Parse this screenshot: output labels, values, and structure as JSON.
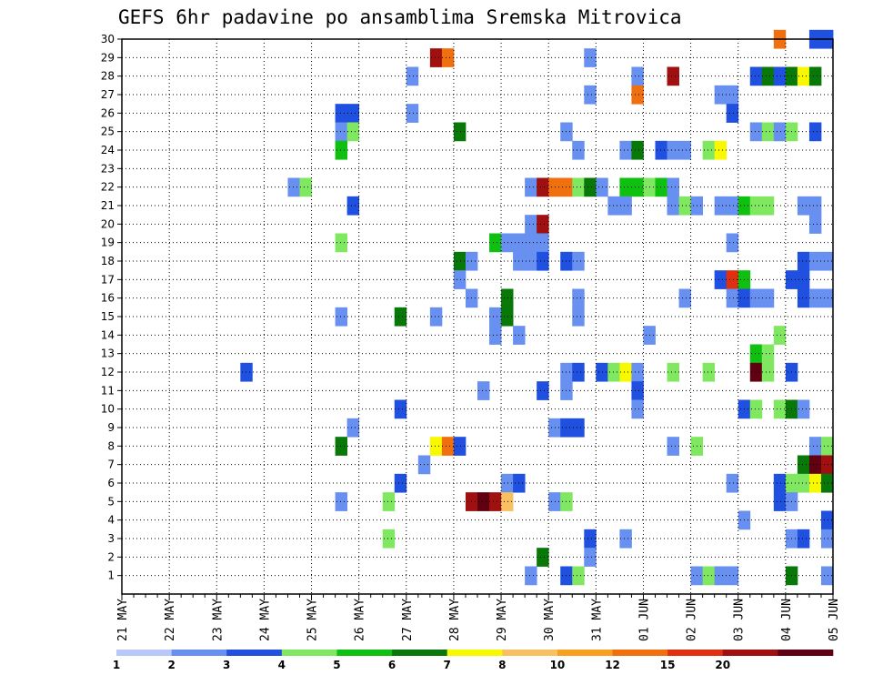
{
  "chart_data": {
    "type": "heatmap",
    "title": "GEFS 6hr padavine po ansamblima Sremska Mitrovica",
    "x_tick_labels": [
      "21 MAY",
      "22 MAY",
      "23 MAY",
      "24 MAY",
      "25 MAY",
      "26 MAY",
      "27 MAY",
      "28 MAY",
      "29 MAY",
      "30 MAY",
      "31 MAY",
      "01 JUN",
      "02 JUN",
      "03 JUN",
      "04 JUN",
      "05 JUN"
    ],
    "y_tick_labels": [
      "1",
      "2",
      "3",
      "4",
      "5",
      "6",
      "7",
      "8",
      "9",
      "10",
      "11",
      "12",
      "13",
      "14",
      "15",
      "16",
      "17",
      "18",
      "19",
      "20",
      "21",
      "22",
      "23",
      "24",
      "25",
      "26",
      "27",
      "28",
      "29",
      "30"
    ],
    "ylim": [
      0,
      30
    ],
    "steps_per_day": 4,
    "total_steps": 60,
    "grid": true,
    "colorbar": {
      "levels": [
        "1",
        "2",
        "3",
        "4",
        "5",
        "6",
        "7",
        "8",
        "10",
        "12",
        "15",
        "20"
      ],
      "colors": [
        "#b8c8f8",
        "#6890f0",
        "#2050e0",
        "#80e860",
        "#10c010",
        "#087808",
        "#f8f800",
        "#f8c060",
        "#f8a020",
        "#f07010",
        "#e03010",
        "#a01010",
        "#600010"
      ]
    },
    "cells": [
      [
        30,
        55,
        9
      ],
      [
        30,
        58,
        2
      ],
      [
        30,
        59,
        2
      ],
      [
        29,
        26,
        11
      ],
      [
        29,
        27,
        9
      ],
      [
        29,
        39,
        1
      ],
      [
        28,
        24,
        1
      ],
      [
        28,
        43,
        1
      ],
      [
        28,
        46,
        11
      ],
      [
        28,
        53,
        2
      ],
      [
        28,
        54,
        5
      ],
      [
        28,
        55,
        2
      ],
      [
        28,
        56,
        5
      ],
      [
        28,
        57,
        6
      ],
      [
        28,
        58,
        5
      ],
      [
        27,
        39,
        1
      ],
      [
        27,
        43,
        9
      ],
      [
        27,
        50,
        1
      ],
      [
        27,
        51,
        1
      ],
      [
        26,
        18,
        2
      ],
      [
        26,
        19,
        2
      ],
      [
        26,
        24,
        1
      ],
      [
        26,
        51,
        2
      ],
      [
        25,
        18,
        1
      ],
      [
        25,
        19,
        3
      ],
      [
        25,
        28,
        5
      ],
      [
        25,
        37,
        1
      ],
      [
        25,
        53,
        1
      ],
      [
        25,
        54,
        3
      ],
      [
        25,
        55,
        1
      ],
      [
        25,
        56,
        3
      ],
      [
        25,
        58,
        2
      ],
      [
        24,
        18,
        4
      ],
      [
        24,
        38,
        1
      ],
      [
        24,
        42,
        1
      ],
      [
        24,
        43,
        5
      ],
      [
        24,
        45,
        2
      ],
      [
        24,
        46,
        1
      ],
      [
        24,
        47,
        1
      ],
      [
        24,
        49,
        3
      ],
      [
        24,
        50,
        6
      ],
      [
        22,
        14,
        1
      ],
      [
        22,
        15,
        3
      ],
      [
        22,
        34,
        1
      ],
      [
        22,
        35,
        11
      ],
      [
        22,
        36,
        9
      ],
      [
        22,
        37,
        9
      ],
      [
        22,
        38,
        3
      ],
      [
        22,
        39,
        5
      ],
      [
        22,
        40,
        1
      ],
      [
        22,
        42,
        4
      ],
      [
        22,
        43,
        4
      ],
      [
        22,
        44,
        3
      ],
      [
        22,
        45,
        4
      ],
      [
        22,
        46,
        1
      ],
      [
        21,
        19,
        2
      ],
      [
        21,
        41,
        1
      ],
      [
        21,
        42,
        1
      ],
      [
        21,
        46,
        1
      ],
      [
        21,
        47,
        3
      ],
      [
        21,
        48,
        1
      ],
      [
        21,
        50,
        1
      ],
      [
        21,
        51,
        1
      ],
      [
        21,
        52,
        4
      ],
      [
        21,
        53,
        3
      ],
      [
        21,
        54,
        3
      ],
      [
        21,
        57,
        1
      ],
      [
        21,
        58,
        1
      ],
      [
        20,
        34,
        1
      ],
      [
        20,
        35,
        11
      ],
      [
        20,
        58,
        1
      ],
      [
        19,
        18,
        3
      ],
      [
        19,
        31,
        4
      ],
      [
        19,
        32,
        1
      ],
      [
        19,
        33,
        1
      ],
      [
        19,
        34,
        1
      ],
      [
        19,
        35,
        1
      ],
      [
        19,
        51,
        1
      ],
      [
        18,
        28,
        5
      ],
      [
        18,
        29,
        1
      ],
      [
        18,
        33,
        1
      ],
      [
        18,
        34,
        1
      ],
      [
        18,
        35,
        2
      ],
      [
        18,
        37,
        2
      ],
      [
        18,
        38,
        1
      ],
      [
        18,
        57,
        2
      ],
      [
        18,
        58,
        1
      ],
      [
        18,
        59,
        1
      ],
      [
        17,
        28,
        1
      ],
      [
        17,
        50,
        2
      ],
      [
        17,
        51,
        10
      ],
      [
        17,
        52,
        4
      ],
      [
        17,
        56,
        2
      ],
      [
        17,
        57,
        2
      ],
      [
        16,
        29,
        1
      ],
      [
        16,
        32,
        5
      ],
      [
        16,
        38,
        1
      ],
      [
        16,
        47,
        1
      ],
      [
        16,
        51,
        1
      ],
      [
        16,
        52,
        2
      ],
      [
        16,
        53,
        1
      ],
      [
        16,
        54,
        1
      ],
      [
        16,
        57,
        2
      ],
      [
        16,
        58,
        1
      ],
      [
        16,
        59,
        1
      ],
      [
        15,
        18,
        1
      ],
      [
        15,
        23,
        5
      ],
      [
        15,
        26,
        1
      ],
      [
        15,
        31,
        1
      ],
      [
        15,
        32,
        5
      ],
      [
        15,
        38,
        1
      ],
      [
        14,
        31,
        1
      ],
      [
        14,
        33,
        1
      ],
      [
        14,
        44,
        1
      ],
      [
        14,
        55,
        3
      ],
      [
        13,
        53,
        4
      ],
      [
        13,
        54,
        3
      ],
      [
        12,
        10,
        2
      ],
      [
        12,
        37,
        1
      ],
      [
        12,
        38,
        2
      ],
      [
        12,
        40,
        2
      ],
      [
        12,
        41,
        3
      ],
      [
        12,
        42,
        6
      ],
      [
        12,
        43,
        1
      ],
      [
        12,
        46,
        3
      ],
      [
        12,
        49,
        3
      ],
      [
        12,
        53,
        12
      ],
      [
        12,
        54,
        3
      ],
      [
        12,
        56,
        2
      ],
      [
        11,
        30,
        1
      ],
      [
        11,
        35,
        2
      ],
      [
        11,
        37,
        1
      ],
      [
        11,
        43,
        2
      ],
      [
        10,
        23,
        2
      ],
      [
        10,
        43,
        1
      ],
      [
        10,
        52,
        2
      ],
      [
        10,
        53,
        3
      ],
      [
        10,
        55,
        3
      ],
      [
        10,
        56,
        5
      ],
      [
        10,
        57,
        1
      ],
      [
        9,
        19,
        1
      ],
      [
        9,
        36,
        1
      ],
      [
        9,
        37,
        2
      ],
      [
        9,
        38,
        2
      ],
      [
        8,
        18,
        5
      ],
      [
        8,
        26,
        6
      ],
      [
        8,
        27,
        9
      ],
      [
        8,
        28,
        2
      ],
      [
        8,
        46,
        1
      ],
      [
        8,
        48,
        3
      ],
      [
        8,
        58,
        1
      ],
      [
        8,
        59,
        3
      ],
      [
        7,
        25,
        1
      ],
      [
        7,
        57,
        5
      ],
      [
        7,
        58,
        12
      ],
      [
        7,
        59,
        11
      ],
      [
        6,
        23,
        2
      ],
      [
        6,
        32,
        1
      ],
      [
        6,
        33,
        2
      ],
      [
        6,
        51,
        1
      ],
      [
        6,
        55,
        2
      ],
      [
        6,
        56,
        3
      ],
      [
        6,
        57,
        3
      ],
      [
        6,
        58,
        6
      ],
      [
        6,
        59,
        5
      ],
      [
        5,
        18,
        1
      ],
      [
        5,
        22,
        3
      ],
      [
        5,
        29,
        11
      ],
      [
        5,
        30,
        12
      ],
      [
        5,
        31,
        11
      ],
      [
        5,
        32,
        7
      ],
      [
        5,
        36,
        1
      ],
      [
        5,
        37,
        3
      ],
      [
        5,
        55,
        2
      ],
      [
        5,
        56,
        1
      ],
      [
        4,
        52,
        1
      ],
      [
        4,
        59,
        2
      ],
      [
        3,
        22,
        3
      ],
      [
        3,
        39,
        2
      ],
      [
        3,
        42,
        1
      ],
      [
        3,
        56,
        1
      ],
      [
        3,
        57,
        2
      ],
      [
        3,
        59,
        1
      ],
      [
        2,
        35,
        5
      ],
      [
        2,
        39,
        1
      ],
      [
        1,
        34,
        1
      ],
      [
        1,
        37,
        2
      ],
      [
        1,
        38,
        3
      ],
      [
        1,
        48,
        1
      ],
      [
        1,
        49,
        3
      ],
      [
        1,
        50,
        1
      ],
      [
        1,
        51,
        1
      ],
      [
        1,
        56,
        5
      ],
      [
        1,
        59,
        1
      ]
    ]
  }
}
